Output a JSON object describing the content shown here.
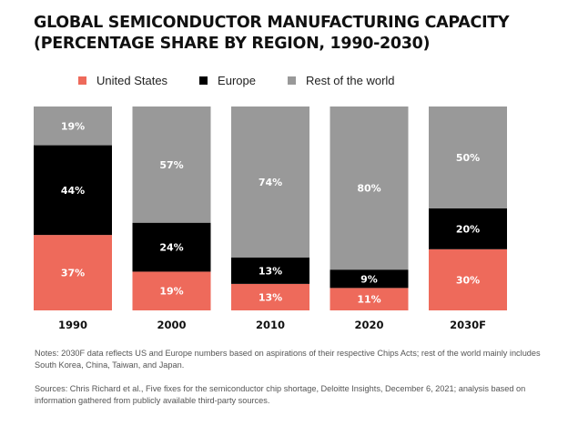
{
  "title_lines": [
    "GLOBAL SEMICONDUCTOR MANUFACTURING CAPACITY",
    "(PERCENTAGE SHARE BY REGION, 1990-2030)"
  ],
  "colors": {
    "united_states": "#EE6A5B",
    "europe": "#000000",
    "rest_of_world": "#999999"
  },
  "chart_data": {
    "type": "bar",
    "stacked": true,
    "categories": [
      "1990",
      "2000",
      "2010",
      "2020",
      "2030F"
    ],
    "series": [
      {
        "name": "United States",
        "values": [
          37,
          19,
          13,
          11,
          30
        ],
        "color": "#EE6A5B",
        "label_color": "#ffffff"
      },
      {
        "name": "Europe",
        "values": [
          44,
          24,
          13,
          9,
          20
        ],
        "color": "#000000",
        "label_color": "#ffffff"
      },
      {
        "name": "Rest of the world",
        "values": [
          19,
          57,
          74,
          80,
          50
        ],
        "color": "#999999",
        "label_color": "#ffffff"
      }
    ],
    "labels": [
      [
        "37%",
        "19%",
        "13%",
        "11%",
        "30%"
      ],
      [
        "44%",
        "24%",
        "13%",
        "9%",
        "20%"
      ],
      [
        "19%",
        "57%",
        "74%",
        "80%",
        "50%"
      ]
    ],
    "ylim": [
      0,
      100
    ],
    "legend_position": "top-left",
    "grid": false
  },
  "notes": [
    "Notes: 2030F data reflects US and Europe numbers based on aspirations of their respective Chips Acts; rest of the world mainly includes South Korea, China, Taiwan, and Japan.",
    "Sources: Chris Richard et al., Five fixes for the semiconductor chip shortage, Deloitte Insights, December 6, 2021; analysis based on information gathered from publicly available third-party sources."
  ]
}
